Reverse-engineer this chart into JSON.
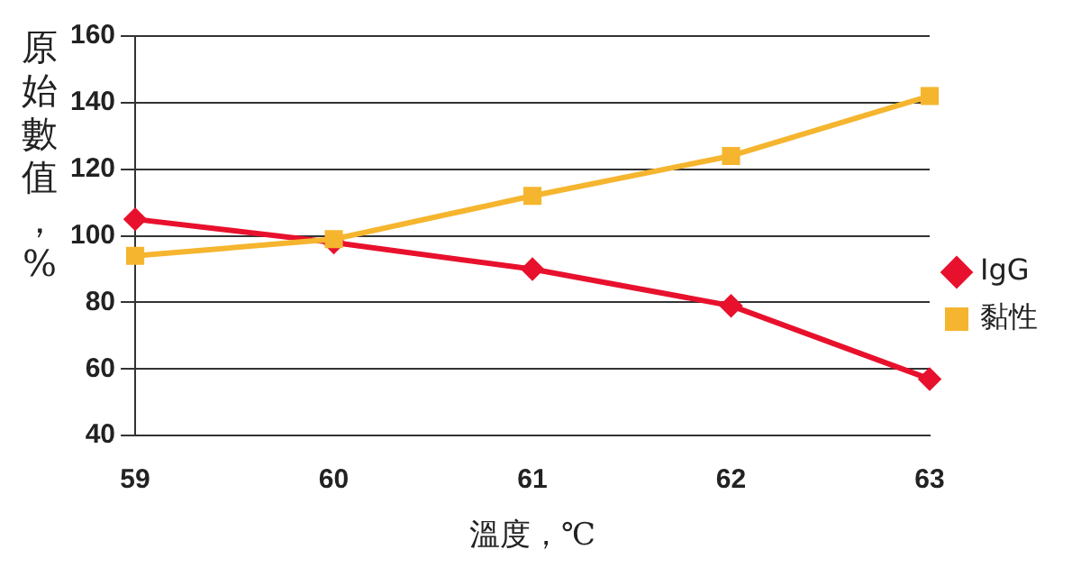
{
  "chart_data": {
    "type": "line",
    "xlabel": "溫度，℃",
    "ylabel": "原始數值，%",
    "categories": [
      "59",
      "60",
      "61",
      "62",
      "63"
    ],
    "series": [
      {
        "name": "IgG",
        "color": "#e8112d",
        "marker": "diamond",
        "values": [
          105,
          98,
          90,
          79,
          57
        ]
      },
      {
        "name": "黏性",
        "color": "#f5b52e",
        "marker": "square",
        "values": [
          94,
          99,
          112,
          124,
          142
        ]
      }
    ],
    "ylim": [
      40,
      160
    ],
    "yticks": [
      40,
      60,
      80,
      100,
      120,
      140,
      160
    ],
    "grid": "y",
    "legend": "right",
    "line_style": "solid"
  }
}
